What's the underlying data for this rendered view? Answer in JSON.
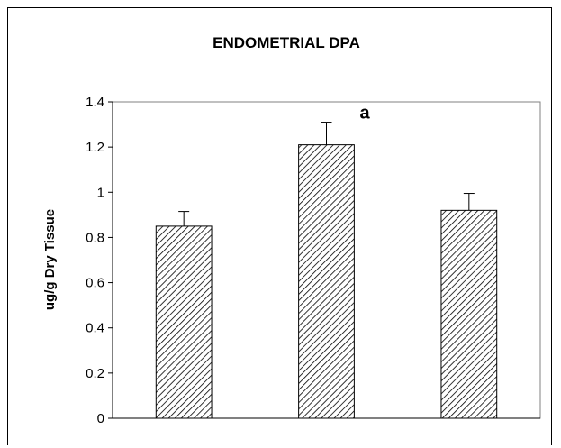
{
  "chart_data": {
    "type": "bar",
    "title": "ENDOMETRIAL DPA",
    "xlabel": "",
    "ylabel": "ug/g Dry Tissue",
    "ylim": [
      0,
      1.4
    ],
    "yticks": [
      "0",
      "0.2",
      "0.4",
      "0.6",
      "0.8",
      "1",
      "1.2",
      "1.4"
    ],
    "grid": false,
    "legend": "none",
    "bar_fill": "diagonal-hatch",
    "colors": {
      "bar_line": "#000000",
      "plot_border": "#808080"
    },
    "bars": [
      {
        "value": 0.85,
        "error": 0.065,
        "annotation": ""
      },
      {
        "value": 1.21,
        "error": 0.1,
        "annotation": "a"
      },
      {
        "value": 0.92,
        "error": 0.075,
        "annotation": ""
      }
    ]
  }
}
